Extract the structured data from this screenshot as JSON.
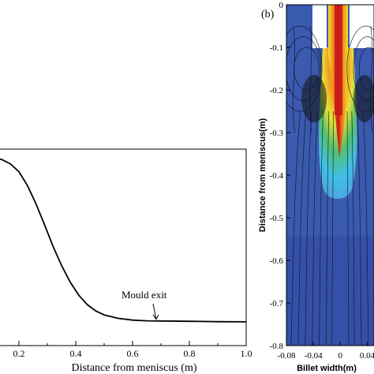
{
  "chart_data": [
    {
      "type": "line",
      "xlabel": "Distance from meniscus (m)",
      "ylabel": "",
      "xlim": [
        0,
        1.0
      ],
      "x_ticks": [
        "0.2",
        "0.4",
        "0.6",
        "0.8",
        "1.0"
      ],
      "series": [
        {
          "x": [
            0.11,
            0.14,
            0.17,
            0.2,
            0.23,
            0.26,
            0.29,
            0.32,
            0.35,
            0.38,
            0.41,
            0.44,
            0.47,
            0.5,
            0.55,
            0.6,
            0.65,
            0.7,
            0.8,
            0.9,
            1.0
          ],
          "y": [
            0.951,
            0.94,
            0.915,
            0.87,
            0.79,
            0.685,
            0.565,
            0.44,
            0.33,
            0.235,
            0.16,
            0.105,
            0.068,
            0.045,
            0.025,
            0.015,
            0.011,
            0.01,
            0.008,
            0.006,
            0.005
          ]
        }
      ],
      "annotations": [
        {
          "text": "Mould exit",
          "x": 0.7,
          "y": 0.01
        }
      ]
    },
    {
      "type": "heatmap",
      "panel_label": "(b)",
      "xlabel": "Billet width(m)",
      "ylabel": "Distance from meniscus(m)",
      "xlim": [
        -0.08,
        0.05
      ],
      "ylim": [
        -0.8,
        0
      ],
      "x_ticks": [
        "-0.08",
        "-0.04",
        "0",
        "0.04"
      ],
      "y_ticks": [
        "0",
        "-0.1",
        "-0.2",
        "-0.3",
        "-0.4",
        "-0.5",
        "-0.6",
        "-0.7",
        "-0.8"
      ],
      "colors": {
        "background": "#3c5cb0",
        "jet_core": "#c01818",
        "jet_orange": "#f07818",
        "jet_yellow": "#f0e030",
        "jet_green": "#48c060",
        "jet_cyan": "#40c0e8",
        "nozzle": "#ffffff",
        "streamline": "#111111"
      }
    }
  ]
}
